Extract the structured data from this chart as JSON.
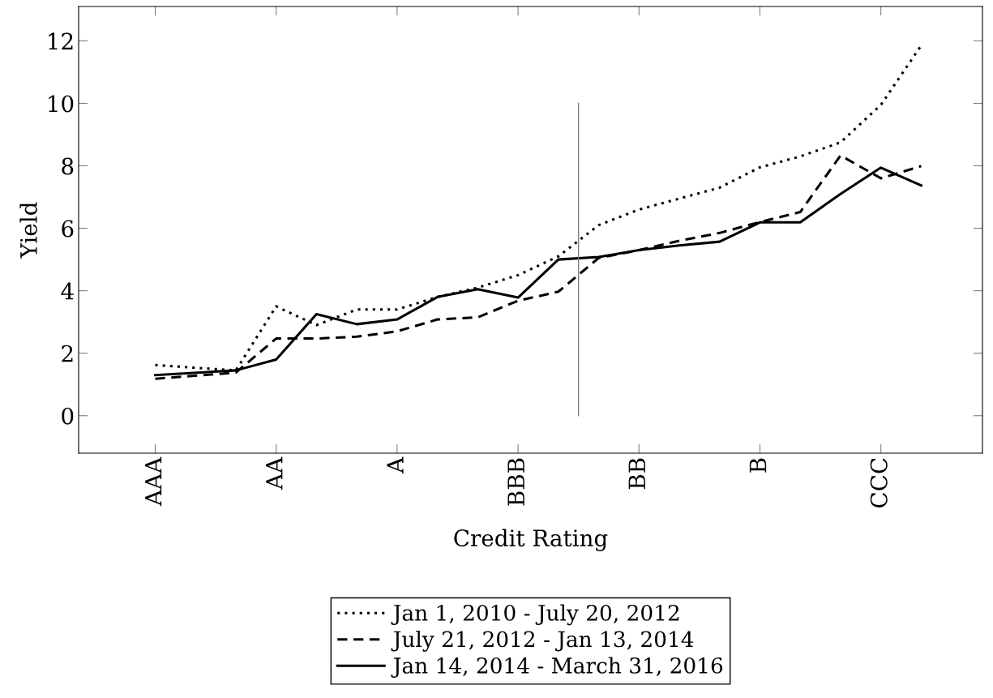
{
  "chart_data": {
    "type": "line",
    "xlabel": "Credit Rating",
    "ylabel": "Yield",
    "categories": [
      "AAA",
      null,
      null,
      "AA",
      null,
      null,
      "A",
      null,
      null,
      "BBB",
      null,
      null,
      "BB",
      null,
      null,
      "B",
      null,
      null,
      "CCC",
      null
    ],
    "ylim": [
      -1.2,
      13.1
    ],
    "yticks": [
      0,
      2,
      4,
      6,
      8,
      10,
      12
    ],
    "grid": false,
    "legend": "bottom",
    "series": [
      {
        "name": "Jan 1, 2010 - July 20, 2012",
        "color": "#000000",
        "line_style": "dotted",
        "values": [
          1.62,
          null,
          1.45,
          3.5,
          2.9,
          3.4,
          3.4,
          3.8,
          4.1,
          4.5,
          5.1,
          6.1,
          6.6,
          6.95,
          7.3,
          7.95,
          8.3,
          8.75,
          9.95,
          11.85
        ]
      },
      {
        "name": "July 21, 2012 - Jan 13, 2014",
        "color": "#000000",
        "line_style": "dashed",
        "values": [
          1.18,
          null,
          1.38,
          2.47,
          2.47,
          2.53,
          2.7,
          3.08,
          3.15,
          3.68,
          3.97,
          5.05,
          5.3,
          5.6,
          5.85,
          6.2,
          6.52,
          8.33,
          7.6,
          7.99
        ]
      },
      {
        "name": "Jan 14, 2014 - March 31, 2016",
        "color": "#000000",
        "line_style": "solid",
        "values": [
          1.3,
          null,
          1.45,
          1.8,
          3.25,
          2.93,
          3.08,
          3.8,
          4.05,
          3.78,
          5.0,
          5.08,
          5.3,
          5.45,
          5.57,
          6.19,
          6.19,
          7.1,
          7.94,
          7.37
        ]
      }
    ]
  }
}
